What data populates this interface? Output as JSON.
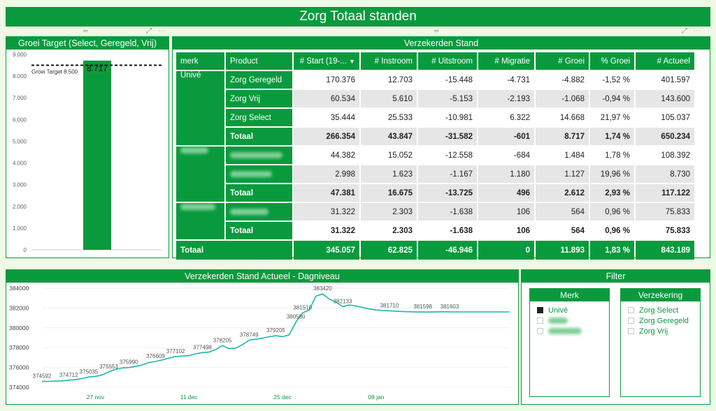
{
  "page": {
    "title": "Zorg Totaal standen"
  },
  "bar_panel": {
    "title": "Groei Target (Select, Geregeld, Vrij)",
    "target_label": "Groei Target 8.500",
    "chart_data": {
      "type": "bar",
      "categories": [
        ""
      ],
      "values": [
        8717
      ],
      "data_labels": [
        "8.717"
      ],
      "target": 8500,
      "ylim": [
        0,
        9000
      ],
      "yticks": [
        "0",
        "1.000",
        "2.000",
        "3.000",
        "4.000",
        "5.000",
        "6.000",
        "7.000",
        "8.000",
        "9.000"
      ],
      "color": "#0a9a3e"
    }
  },
  "table": {
    "title": "Verzekerden Stand",
    "headers": [
      "merk",
      "Product",
      "# Start (19-...",
      "# Instroom",
      "# Uitstroom",
      "# Migratie",
      "# Groei",
      "% Groei",
      "# Actueel"
    ],
    "groups": [
      {
        "merk": "Univé",
        "rows": [
          {
            "product": "Zorg Geregeld",
            "values": [
              "170.376",
              "12.703",
              "-15.448",
              "-4.731",
              "-4.882",
              "-1,52 %",
              "401.597"
            ]
          },
          {
            "product": "Zorg Vrij",
            "values": [
              "60.534",
              "5.610",
              "-5.153",
              "-2.193",
              "-1.068",
              "-0,94 %",
              "143.600"
            ]
          },
          {
            "product": "Zorg Select",
            "values": [
              "35.444",
              "25.533",
              "-10.981",
              "6.322",
              "14.668",
              "21,97 %",
              "105.037"
            ]
          }
        ],
        "total": {
          "label": "Totaal",
          "values": [
            "266.354",
            "43.847",
            "-31.582",
            "-601",
            "8.717",
            "1,74 %",
            "650.234"
          ]
        }
      },
      {
        "merk": "",
        "rows": [
          {
            "product": "",
            "values": [
              "44.382",
              "15.052",
              "-12.558",
              "-684",
              "1.484",
              "1,78 %",
              "108.392"
            ]
          },
          {
            "product": "",
            "values": [
              "2.998",
              "1.623",
              "-1.167",
              "1.180",
              "1.127",
              "19,96 %",
              "8.730"
            ]
          }
        ],
        "total": {
          "label": "Totaal",
          "values": [
            "47.381",
            "16.675",
            "-13.725",
            "496",
            "2.612",
            "2,93 %",
            "117.122"
          ]
        }
      },
      {
        "merk": "",
        "rows": [
          {
            "product": "",
            "values": [
              "31.322",
              "2.303",
              "-1.638",
              "106",
              "564",
              "0,96 %",
              "75.833"
            ]
          }
        ],
        "total": {
          "label": "Totaal",
          "values": [
            "31.322",
            "2.303",
            "-1.638",
            "106",
            "564",
            "0,96 %",
            "75.833"
          ]
        }
      }
    ],
    "grand_total": {
      "label": "Totaal",
      "values": [
        "345.057",
        "62.825",
        "-46.946",
        "0",
        "11.893",
        "1,83 %",
        "843.189"
      ]
    }
  },
  "line_panel": {
    "title": "Verzekerden Stand Actueel - Dagniveau",
    "chart_data": {
      "type": "line",
      "x": [
        0,
        1,
        2,
        3,
        4,
        5,
        6,
        7,
        8,
        9,
        10,
        11,
        12,
        13,
        14,
        15,
        16,
        17,
        18,
        19,
        20,
        21,
        22,
        23,
        24,
        25,
        26,
        27,
        28,
        29,
        30,
        31,
        32,
        33,
        34,
        35,
        36,
        37,
        38,
        39,
        40,
        41,
        42,
        43,
        44,
        45,
        46,
        47,
        48,
        49,
        50,
        51,
        52,
        53,
        54,
        55,
        56,
        57,
        58,
        59,
        60,
        61,
        62,
        63,
        64,
        65,
        66,
        67,
        68,
        69,
        70
      ],
      "values": [
        374592,
        374600,
        374620,
        374650,
        374712,
        374780,
        374880,
        375035,
        375100,
        375250,
        375553,
        375800,
        375950,
        375990,
        376100,
        376250,
        376500,
        376609,
        376750,
        376950,
        377102,
        377150,
        377200,
        377380,
        377498,
        377550,
        377800,
        378205,
        377900,
        377950,
        378300,
        378749,
        378850,
        378950,
        379100,
        379205,
        379100,
        379300,
        380580,
        381510,
        381800,
        383200,
        383420,
        382900,
        382600,
        382133,
        382300,
        382200,
        382050,
        381900,
        381800,
        381750,
        381710,
        381680,
        381650,
        381620,
        381600,
        381598,
        381590,
        381610,
        381620,
        381603,
        381603,
        381603,
        381603,
        381603,
        381603,
        381603,
        381603,
        381603,
        381603
      ],
      "point_labels": [
        {
          "i": 0,
          "label": "374592"
        },
        {
          "i": 4,
          "label": "374712"
        },
        {
          "i": 7,
          "label": "375035"
        },
        {
          "i": 10,
          "label": "375553"
        },
        {
          "i": 13,
          "label": "375990"
        },
        {
          "i": 17,
          "label": "376609"
        },
        {
          "i": 20,
          "label": "377102"
        },
        {
          "i": 24,
          "label": "377498"
        },
        {
          "i": 27,
          "label": "378205"
        },
        {
          "i": 31,
          "label": "378749"
        },
        {
          "i": 35,
          "label": "379205"
        },
        {
          "i": 38,
          "label": "380580"
        },
        {
          "i": 39,
          "label": "381510"
        },
        {
          "i": 42,
          "label": "383420"
        },
        {
          "i": 45,
          "label": "382133"
        },
        {
          "i": 52,
          "label": "381710"
        },
        {
          "i": 57,
          "label": "381598"
        },
        {
          "i": 61,
          "label": "381603"
        }
      ],
      "xticks": [
        {
          "i": 8,
          "label": "27 nov"
        },
        {
          "i": 22,
          "label": "11 dec"
        },
        {
          "i": 36,
          "label": "25 dec"
        },
        {
          "i": 50,
          "label": "08 jan"
        }
      ],
      "yticks": [
        "374000",
        "376000",
        "378000",
        "380000",
        "382000",
        "384000"
      ],
      "ylim": [
        374000,
        384000
      ],
      "color": "#1bb8a8"
    }
  },
  "filter_panel": {
    "title": "Filter",
    "merk": {
      "title": "Merk",
      "items": [
        {
          "label": "Univé",
          "checked": true
        },
        {
          "label": "",
          "checked": false
        },
        {
          "label": "",
          "checked": false
        }
      ]
    },
    "verzekering": {
      "title": "Verzekering",
      "items": [
        {
          "label": "Zorg Select",
          "checked": false
        },
        {
          "label": "Zorg Geregeld",
          "checked": false
        },
        {
          "label": "Zorg Vrij",
          "checked": false
        }
      ]
    }
  }
}
